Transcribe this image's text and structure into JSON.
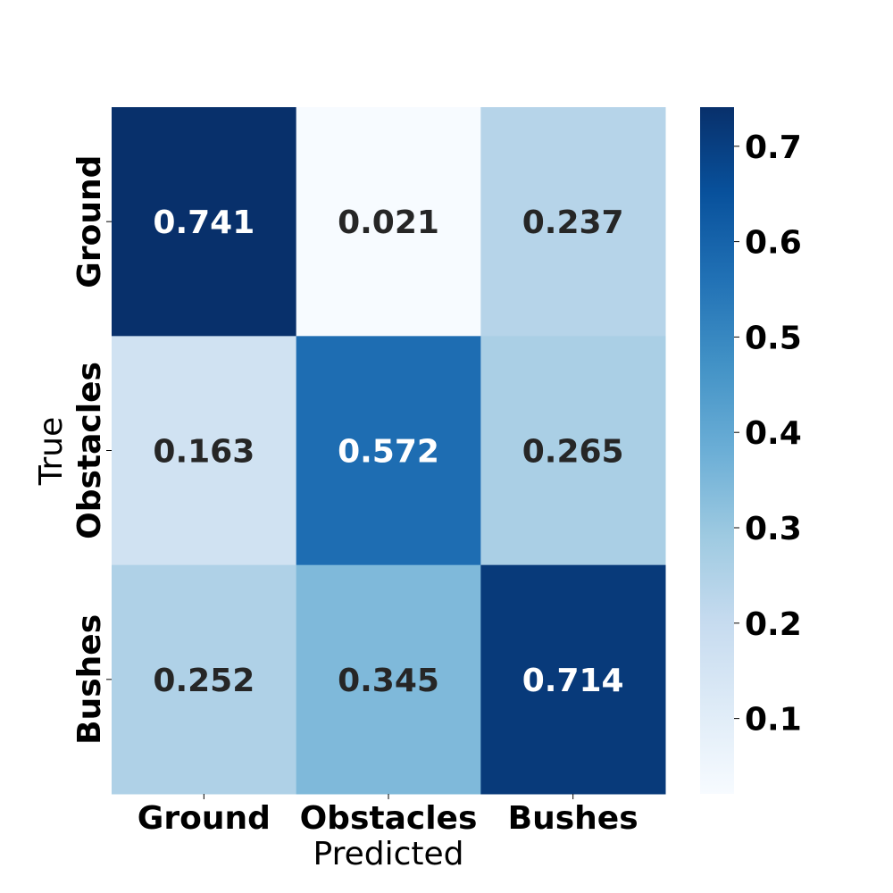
{
  "chart_data": {
    "type": "heatmap",
    "title": "",
    "xlabel": "Predicted",
    "ylabel": "True",
    "x_categories": [
      "Ground",
      "Obstacles",
      "Bushes"
    ],
    "y_categories": [
      "Ground",
      "Obstacles",
      "Bushes"
    ],
    "values": [
      [
        0.741,
        0.021,
        0.237
      ],
      [
        0.163,
        0.572,
        0.265
      ],
      [
        0.252,
        0.345,
        0.714
      ]
    ],
    "value_labels": [
      [
        "0.741",
        "0.021",
        "0.237"
      ],
      [
        "0.163",
        "0.572",
        "0.265"
      ],
      [
        "0.252",
        "0.345",
        "0.714"
      ]
    ],
    "colormap": "Blues",
    "colorbar": {
      "vmin": 0.021,
      "vmax": 0.741,
      "ticks": [
        0.1,
        0.2,
        0.3,
        0.4,
        0.5,
        0.6,
        0.7
      ],
      "tick_labels": [
        "0.1",
        "0.2",
        "0.3",
        "0.4",
        "0.5",
        "0.6",
        "0.7"
      ]
    },
    "colors": {
      "text_dark": "#262626",
      "text_light": "#ffffff"
    }
  }
}
